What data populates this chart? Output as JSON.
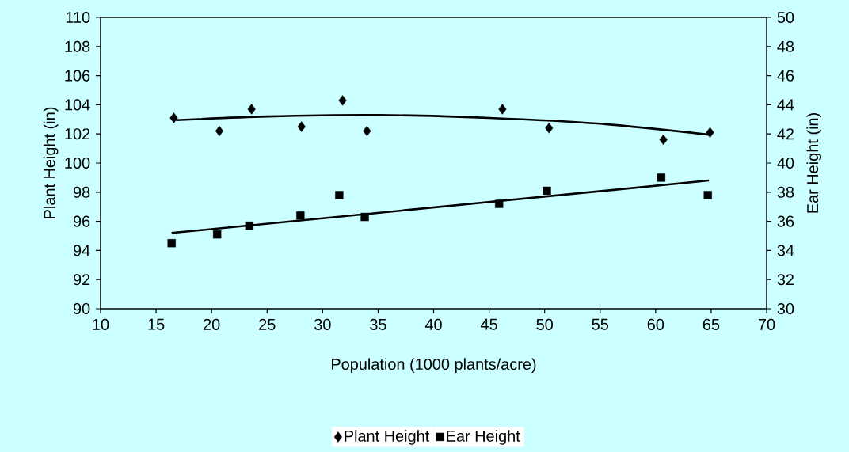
{
  "chart_data": {
    "type": "scatter",
    "xlabel": "Population (1000 plants/acre)",
    "ylabel": "Plant Height (in)",
    "y2label": "Ear Height (in)",
    "xlim": [
      10,
      70
    ],
    "xticks": [
      10,
      15,
      20,
      25,
      30,
      35,
      40,
      45,
      50,
      55,
      60,
      65,
      70
    ],
    "ylim": [
      90,
      110
    ],
    "yticks": [
      90,
      92,
      94,
      96,
      98,
      100,
      102,
      104,
      106,
      108,
      110
    ],
    "y2lim": [
      30,
      50
    ],
    "y2ticks": [
      30,
      32,
      34,
      36,
      38,
      40,
      42,
      44,
      46,
      48,
      50
    ],
    "legend": "bottom",
    "series": [
      {
        "name": "Plant Height",
        "marker": "diamond",
        "color": "#000000",
        "x": [
          16.6,
          20.7,
          23.6,
          28.1,
          31.8,
          34.0,
          46.2,
          50.4,
          60.7,
          64.9
        ],
        "values": [
          103.1,
          102.2,
          103.7,
          102.5,
          104.3,
          102.2,
          103.7,
          102.4,
          101.6,
          102.1
        ]
      },
      {
        "name": "Ear Height",
        "marker": "square",
        "axis": "y2",
        "color": "#000000",
        "x": [
          16.4,
          20.5,
          23.4,
          28.0,
          31.5,
          33.8,
          45.9,
          50.2,
          60.5,
          64.7
        ],
        "values": [
          34.5,
          35.1,
          35.7,
          36.4,
          37.8,
          36.3,
          37.2,
          38.1,
          39.0,
          37.8
        ]
      },
      {
        "type": "line",
        "marker": "none",
        "line_style": "solid",
        "color": "#000000",
        "x": [
          16.8,
          25,
          35,
          45,
          55,
          64.8
        ],
        "values": [
          102.95,
          103.2,
          103.3,
          103.1,
          102.7,
          101.95
        ]
      },
      {
        "type": "line",
        "marker": "none",
        "line_style": "solid",
        "axis": "y2",
        "color": "#000000",
        "x": [
          16.4,
          64.8
        ],
        "values": [
          35.2,
          38.8
        ]
      }
    ]
  }
}
